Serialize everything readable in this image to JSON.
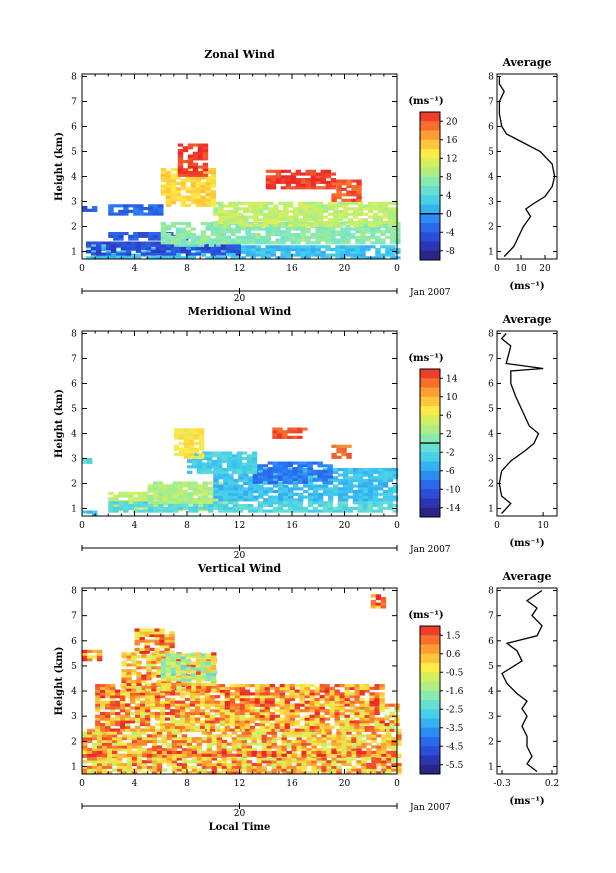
{
  "chart_data": [
    {
      "type": "heatmap",
      "title": "Zonal Wind",
      "ylabel": "Height (km)",
      "x_ticks": [
        "0",
        "4",
        "8",
        "12",
        "16",
        "20",
        "0"
      ],
      "y_ticks": [
        "1",
        "2",
        "3",
        "4",
        "5",
        "6",
        "7",
        "8"
      ],
      "xlim": [
        0,
        24
      ],
      "ylim": [
        0.7,
        8.1
      ],
      "date_tick": "20",
      "date_label": "Jan 2007",
      "colorbar": {
        "unit": "(ms⁻¹)",
        "ticks": [
          "20",
          "16",
          "12",
          "8",
          "4",
          "0",
          "-4",
          "-8"
        ],
        "range": [
          -10,
          22
        ],
        "zero_contour": 0
      },
      "regions": [
        {
          "x": [
            0.3,
            24
          ],
          "y": [
            0.7,
            1.2
          ],
          "value": 2
        },
        {
          "x": [
            0.3,
            12
          ],
          "y": [
            0.85,
            1.4
          ],
          "value": -5
        },
        {
          "x": [
            2,
            8
          ],
          "y": [
            1.45,
            1.7
          ],
          "value": -4
        },
        {
          "x": [
            7,
            11
          ],
          "y": [
            1.2,
            1.6
          ],
          "value": 6
        },
        {
          "x": [
            6,
            24
          ],
          "y": [
            1.3,
            2.1
          ],
          "value": 7
        },
        {
          "x": [
            10,
            24
          ],
          "y": [
            2.0,
            2.9
          ],
          "value": 10
        },
        {
          "x": [
            2,
            6
          ],
          "y": [
            2.45,
            2.8
          ],
          "value": -3
        },
        {
          "x": [
            0,
            1
          ],
          "y": [
            2.6,
            2.8
          ],
          "value": -4
        },
        {
          "x": [
            6,
            10
          ],
          "y": [
            2.8,
            4.3
          ],
          "value": 14
        },
        {
          "x": [
            7.3,
            9.5
          ],
          "y": [
            4.0,
            5.3
          ],
          "value": 21
        },
        {
          "x": [
            14,
            19
          ],
          "y": [
            3.5,
            4.2
          ],
          "value": 21
        },
        {
          "x": [
            19,
            21
          ],
          "y": [
            3.0,
            3.8
          ],
          "value": 20
        }
      ],
      "profile": {
        "title": "Average",
        "xlabel": "(ms⁻¹)",
        "x_ticks": [
          "0",
          "10",
          "20"
        ],
        "xlim": [
          0,
          25
        ],
        "points": [
          [
            3,
            0.8
          ],
          [
            7,
            1.2
          ],
          [
            9,
            1.6
          ],
          [
            11,
            2.0
          ],
          [
            14,
            2.4
          ],
          [
            12,
            2.7
          ],
          [
            15,
            2.9
          ],
          [
            20,
            3.2
          ],
          [
            23,
            3.6
          ],
          [
            24,
            4.0
          ],
          [
            23,
            4.5
          ],
          [
            18,
            5.0
          ],
          [
            10,
            5.4
          ],
          [
            4,
            5.7
          ],
          [
            2,
            6.0
          ],
          [
            1,
            6.5
          ],
          [
            1,
            7.0
          ],
          [
            3,
            7.4
          ],
          [
            1,
            7.7
          ],
          [
            1,
            8.0
          ]
        ]
      }
    },
    {
      "type": "heatmap",
      "title": "Meridional Wind",
      "ylabel": "Height (km)",
      "x_ticks": [
        "0",
        "4",
        "8",
        "12",
        "16",
        "20",
        "0"
      ],
      "y_ticks": [
        "1",
        "2",
        "3",
        "4",
        "5",
        "6",
        "7",
        "8"
      ],
      "xlim": [
        0,
        24
      ],
      "ylim": [
        0.7,
        8.1
      ],
      "date_tick": "20",
      "date_label": "Jan 2007",
      "colorbar": {
        "unit": "(ms⁻¹)",
        "ticks": [
          "14",
          "10",
          "6",
          "2",
          "-2",
          "-6",
          "-10",
          "-14"
        ],
        "range": [
          -16,
          16
        ],
        "zero_contour": 0
      },
      "regions": [
        {
          "x": [
            0,
            1
          ],
          "y": [
            0.7,
            0.9
          ],
          "value": -4
        },
        {
          "x": [
            2,
            10
          ],
          "y": [
            0.9,
            1.6
          ],
          "value": 4
        },
        {
          "x": [
            2,
            24
          ],
          "y": [
            0.85,
            1.2
          ],
          "value": -2
        },
        {
          "x": [
            5,
            11
          ],
          "y": [
            1.2,
            2.0
          ],
          "value": 3
        },
        {
          "x": [
            10,
            24
          ],
          "y": [
            1.3,
            2.6
          ],
          "value": -4
        },
        {
          "x": [
            13,
            19
          ],
          "y": [
            2.0,
            2.8
          ],
          "value": -8
        },
        {
          "x": [
            8,
            13
          ],
          "y": [
            2.4,
            3.2
          ],
          "value": -3
        },
        {
          "x": [
            7,
            9
          ],
          "y": [
            3.0,
            4.2
          ],
          "value": 7
        },
        {
          "x": [
            14.5,
            17
          ],
          "y": [
            3.8,
            4.2
          ],
          "value": 14
        },
        {
          "x": [
            19,
            20.5
          ],
          "y": [
            3.0,
            3.5
          ],
          "value": 13
        },
        {
          "x": [
            0,
            0.5
          ],
          "y": [
            2.8,
            3.0
          ],
          "value": -2
        }
      ],
      "profile": {
        "title": "Average",
        "xlabel": "(ms⁻¹)",
        "x_ticks": [
          "0",
          "10"
        ],
        "xlim": [
          0,
          13
        ],
        "points": [
          [
            1,
            0.8
          ],
          [
            3,
            1.2
          ],
          [
            1,
            1.5
          ],
          [
            0.5,
            2.0
          ],
          [
            1,
            2.5
          ],
          [
            3,
            2.9
          ],
          [
            6,
            3.3
          ],
          [
            8,
            3.6
          ],
          [
            9,
            4.0
          ],
          [
            7,
            4.3
          ],
          [
            6,
            4.7
          ],
          [
            5,
            5.1
          ],
          [
            4,
            5.5
          ],
          [
            3,
            6.0
          ],
          [
            3,
            6.5
          ],
          [
            10,
            6.6
          ],
          [
            2,
            6.8
          ],
          [
            3,
            7.5
          ],
          [
            1,
            7.8
          ],
          [
            2,
            8.0
          ]
        ]
      }
    },
    {
      "type": "heatmap",
      "title": "Vertical Wind",
      "ylabel": "Height (km)",
      "xlabel": "Local Time",
      "x_ticks": [
        "0",
        "4",
        "8",
        "12",
        "16",
        "20",
        "0"
      ],
      "y_ticks": [
        "1",
        "2",
        "3",
        "4",
        "5",
        "6",
        "7",
        "8"
      ],
      "xlim": [
        0,
        24
      ],
      "ylim": [
        0.7,
        8.1
      ],
      "date_tick": "20",
      "date_label": "Jan 2007",
      "colorbar": {
        "unit": "(ms⁻¹)",
        "ticks": [
          "1.5",
          "0.6",
          "-0.5",
          "-1.6",
          "-2.5",
          "-3.5",
          "-4.5",
          "-5.5"
        ],
        "range": [
          -6,
          2
        ]
      },
      "regions": [
        {
          "x": [
            0,
            24
          ],
          "y": [
            0.7,
            1.4
          ],
          "value": 0.4
        },
        {
          "x": [
            0,
            24
          ],
          "y": [
            1.4,
            2.4
          ],
          "value": 0.3
        },
        {
          "x": [
            1,
            24
          ],
          "y": [
            2.4,
            3.4
          ],
          "value": 0.5
        },
        {
          "x": [
            1,
            23
          ],
          "y": [
            3.4,
            4.2
          ],
          "value": 0.8
        },
        {
          "x": [
            3,
            10
          ],
          "y": [
            4.0,
            5.5
          ],
          "value": 0.5
        },
        {
          "x": [
            6,
            10
          ],
          "y": [
            4.4,
            5.5
          ],
          "value": -1.0
        },
        {
          "x": [
            4,
            7
          ],
          "y": [
            5.5,
            6.4
          ],
          "value": 0.9
        },
        {
          "x": [
            0,
            1.5
          ],
          "y": [
            5.2,
            5.6
          ],
          "value": 0.9
        },
        {
          "x": [
            22,
            23
          ],
          "y": [
            7.3,
            7.8
          ],
          "value": 0.9
        },
        {
          "x": [
            0,
            24
          ],
          "y": [
            1.4,
            1.55
          ],
          "value": 1.2
        }
      ],
      "profile": {
        "title": "Average",
        "xlabel": "(ms⁻¹)",
        "x_ticks": [
          "-0.3",
          "0.2"
        ],
        "xlim": [
          -0.35,
          0.25
        ],
        "points": [
          [
            0.05,
            0.8
          ],
          [
            -0.05,
            1.1
          ],
          [
            0.0,
            1.4
          ],
          [
            -0.05,
            1.8
          ],
          [
            -0.05,
            2.2
          ],
          [
            -0.1,
            2.6
          ],
          [
            -0.05,
            3.0
          ],
          [
            -0.1,
            3.3
          ],
          [
            -0.05,
            3.6
          ],
          [
            -0.15,
            3.9
          ],
          [
            -0.25,
            4.3
          ],
          [
            -0.3,
            4.7
          ],
          [
            -0.1,
            5.2
          ],
          [
            -0.15,
            5.6
          ],
          [
            -0.25,
            5.9
          ],
          [
            0.05,
            6.2
          ],
          [
            0.1,
            6.6
          ],
          [
            0.0,
            7.0
          ],
          [
            0.05,
            7.3
          ],
          [
            -0.05,
            7.6
          ],
          [
            0.1,
            8.0
          ]
        ]
      }
    }
  ]
}
